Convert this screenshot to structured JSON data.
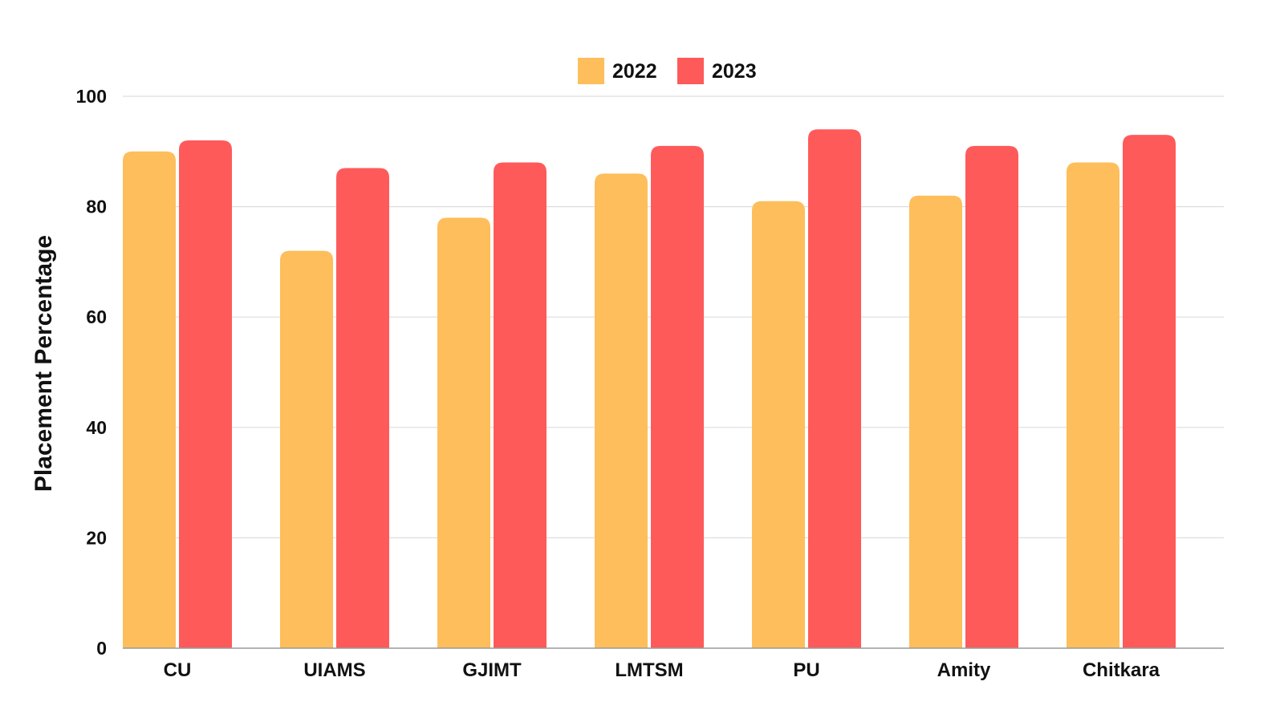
{
  "chart_data": {
    "type": "bar",
    "title": "",
    "xlabel": "",
    "ylabel": "Placement Percentage",
    "ylim": [
      0,
      100
    ],
    "yticks": [
      0,
      20,
      40,
      60,
      80,
      100
    ],
    "grid": true,
    "legend_position": "top-center",
    "categories": [
      "CU",
      "UIAMS",
      "GJIMT",
      "LMTSM",
      "PU",
      "Amity",
      "Chitkara"
    ],
    "series": [
      {
        "name": "2022",
        "color": "#FDBE5B",
        "values": [
          90,
          72,
          78,
          86,
          81,
          82,
          88
        ]
      },
      {
        "name": "2023",
        "color": "#FE5A5A",
        "values": [
          92,
          87,
          88,
          91,
          94,
          91,
          93
        ]
      }
    ]
  }
}
